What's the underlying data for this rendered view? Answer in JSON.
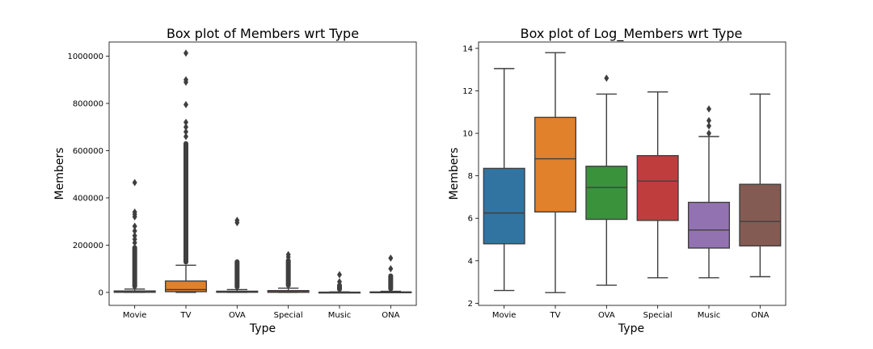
{
  "chart_data": [
    {
      "type": "box",
      "title": "Box plot of Members wrt Type",
      "xlabel": "Type",
      "ylabel": "Members",
      "categories": [
        "Movie",
        "TV",
        "OVA",
        "Special",
        "Music",
        "ONA"
      ],
      "colors": [
        "#3274a1",
        "#e1812c",
        "#3a923a",
        "#c03d3e",
        "#9372b2",
        "#845b53"
      ],
      "ylim": [
        -55000,
        1060000
      ],
      "yticks": [
        0,
        200000,
        400000,
        600000,
        800000,
        1000000
      ],
      "ytick_labels": [
        "0",
        "200000",
        "400000",
        "600000",
        "800000",
        "1000000"
      ],
      "boxes": [
        {
          "whislo": 5,
          "q1": 400,
          "med": 2000,
          "q3": 6000,
          "whishi": 14000,
          "fliers_from": 15000,
          "fliers_to": 200000,
          "fliers": [
            210000,
            225000,
            240000,
            260000,
            280000,
            320000,
            330000,
            340000,
            465000
          ]
        },
        {
          "whislo": 10,
          "q1": 3000,
          "med": 12000,
          "q3": 48000,
          "whishi": 115000,
          "fliers_from": 118000,
          "fliers_to": 640000,
          "fliers": [
            660000,
            680000,
            700000,
            720000,
            795000,
            890000,
            900000,
            1013000
          ]
        },
        {
          "whislo": 10,
          "q1": 400,
          "med": 1500,
          "q3": 5000,
          "whishi": 12000,
          "fliers_from": 13000,
          "fliers_to": 140000,
          "fliers": [
            295000,
            305000
          ]
        },
        {
          "whislo": 10,
          "q1": 300,
          "med": 2200,
          "q3": 7500,
          "whishi": 18000,
          "fliers_from": 20000,
          "fliers_to": 145000,
          "fliers": [
            150000,
            160000
          ]
        },
        {
          "whislo": 20,
          "q1": 100,
          "med": 300,
          "q3": 900,
          "whishi": 2000,
          "fliers_from": 3000,
          "fliers_to": 40000,
          "fliers": [
            45000,
            75000
          ]
        },
        {
          "whislo": 20,
          "q1": 100,
          "med": 350,
          "q3": 2000,
          "whishi": 4500,
          "fliers_from": 5000,
          "fliers_to": 80000,
          "fliers": [
            100000,
            145000
          ]
        }
      ]
    },
    {
      "type": "box",
      "title": "Box plot of Log_Members wrt Type",
      "xlabel": "Type",
      "ylabel": "Members",
      "categories": [
        "Movie",
        "TV",
        "OVA",
        "Special",
        "Music",
        "ONA"
      ],
      "colors": [
        "#3274a1",
        "#e1812c",
        "#3a923a",
        "#c03d3e",
        "#9372b2",
        "#845b53"
      ],
      "ylim": [
        1.9,
        14.3
      ],
      "yticks": [
        2,
        4,
        6,
        8,
        10,
        12,
        14
      ],
      "ytick_labels": [
        "2",
        "4",
        "6",
        "8",
        "10",
        "12",
        "14"
      ],
      "boxes": [
        {
          "whislo": 2.6,
          "q1": 4.8,
          "med": 6.25,
          "q3": 8.35,
          "whishi": 13.05,
          "fliers": []
        },
        {
          "whislo": 2.5,
          "q1": 6.3,
          "med": 8.8,
          "q3": 10.75,
          "whishi": 13.8,
          "fliers": []
        },
        {
          "whislo": 2.85,
          "q1": 5.95,
          "med": 7.45,
          "q3": 8.45,
          "whishi": 11.85,
          "fliers": [
            12.6
          ]
        },
        {
          "whislo": 3.2,
          "q1": 5.9,
          "med": 7.75,
          "q3": 8.95,
          "whishi": 11.95,
          "fliers": []
        },
        {
          "whislo": 3.2,
          "q1": 4.6,
          "med": 5.45,
          "q3": 6.75,
          "whishi": 9.85,
          "fliers": [
            10.0,
            10.35,
            10.6,
            11.15
          ]
        },
        {
          "whislo": 3.25,
          "q1": 4.7,
          "med": 5.85,
          "q3": 7.6,
          "whishi": 11.85,
          "fliers": []
        }
      ]
    }
  ]
}
